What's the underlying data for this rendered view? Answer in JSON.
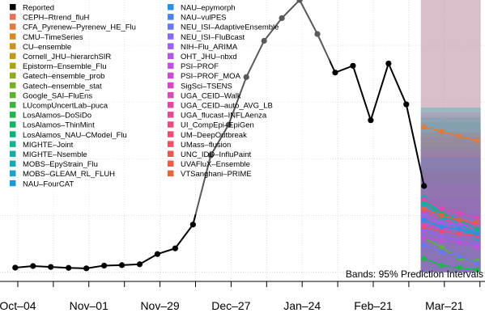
{
  "chart_data": {
    "type": "line",
    "xlabel": "",
    "ylabel": "",
    "x_ticks": [
      "Oct–04",
      "Nov–01",
      "Nov–29",
      "Dec–27",
      "Jan–24",
      "Feb–21",
      "Mar–21"
    ],
    "reported": {
      "name": "Reported",
      "x": [
        "2020-10-03",
        "2020-10-10",
        "2020-10-17",
        "2020-10-24",
        "2020-10-31",
        "2020-11-07",
        "2020-11-14",
        "2020-11-21",
        "2020-11-28",
        "2020-12-05",
        "2020-12-12",
        "2020-12-19",
        "2020-12-26",
        "2021-01-02",
        "2021-01-09",
        "2021-01-16",
        "2021-01-23",
        "2021-01-30",
        "2021-02-06",
        "2021-02-13",
        "2021-02-20",
        "2021-02-27",
        "2021-03-06",
        "2021-03-13"
      ],
      "y": [
        20,
        27,
        23,
        19,
        17,
        29,
        31,
        35,
        80,
        105,
        210,
        515,
        650,
        860,
        1020,
        1120,
        1200,
        1050,
        880,
        910,
        670,
        920,
        740,
        380
      ]
    },
    "legend": [
      {
        "label": "Reported",
        "color": "#000000"
      },
      {
        "label": "CEPH–Rtrend_fluH",
        "color": "#e8705a"
      },
      {
        "label": "CFA_Pyrenew–Pyrenew_HE_Flu",
        "color": "#e07a3c"
      },
      {
        "label": "CMU–TimeSeries",
        "color": "#d9882a"
      },
      {
        "label": "CU–ensemble",
        "color": "#cc9221"
      },
      {
        "label": "Cornell_JHU–hierarchSIR",
        "color": "#bf9a1c"
      },
      {
        "label": "Epistorm–Ensemble_Flu",
        "color": "#aaa21c"
      },
      {
        "label": "Gatech–ensemble_prob",
        "color": "#94a921"
      },
      {
        "label": "Gatech–ensemble_stat",
        "color": "#7aae2a"
      },
      {
        "label": "Google_SAI–FluEns",
        "color": "#5cb234"
      },
      {
        "label": "LUcompUncertLab–puca",
        "color": "#3cb43e"
      },
      {
        "label": "LosAlamos–DoSiDo",
        "color": "#1fb54e"
      },
      {
        "label": "LosAlamos–ThinMint",
        "color": "#12b463"
      },
      {
        "label": "LosAlamos_NAU–CModel_Flu",
        "color": "#14b27a"
      },
      {
        "label": "MIGHTE–Joint",
        "color": "#17b08f"
      },
      {
        "label": "MIGHTE–Nsemble",
        "color": "#18ada3"
      },
      {
        "label": "MOBS–EpyStrain_Flu",
        "color": "#19a9b5"
      },
      {
        "label": "MOBS–GLEAM_RL_FLUH",
        "color": "#1aa3c6"
      },
      {
        "label": "NAU–FourCAT",
        "color": "#1a9bd6"
      },
      {
        "label": "NAU–epymorph",
        "color": "#2a90e2"
      },
      {
        "label": "NAU–vulPES",
        "color": "#4a84ea"
      },
      {
        "label": "NEU_ISI–AdaptiveEnsemble",
        "color": "#6a78ee"
      },
      {
        "label": "NEU_ISI–FluBcast",
        "color": "#856cef"
      },
      {
        "label": "NIH–Flu_ARIMA",
        "color": "#9b62ec"
      },
      {
        "label": "OHT_JHU–nbxd",
        "color": "#ad59e6"
      },
      {
        "label": "PSI–PROF",
        "color": "#bd52dd"
      },
      {
        "label": "PSI–PROF_MOA",
        "color": "#ca4dd1"
      },
      {
        "label": "SigSci–TSENS",
        "color": "#d44ac3"
      },
      {
        "label": "UGA_CEID–Walk",
        "color": "#dc48b4"
      },
      {
        "label": "UGA_CEID–auto_AVG_LB",
        "color": "#e247a4"
      },
      {
        "label": "UGA_flucast–INFLAenza",
        "color": "#e64893"
      },
      {
        "label": "UI_CompEpi–EpiGen",
        "color": "#e84a82"
      },
      {
        "label": "UM–DeepOutbreak",
        "color": "#e94e72"
      },
      {
        "label": "UMass–flusion",
        "color": "#e95362"
      },
      {
        "label": "UNC_IDD–InfluPaint",
        "color": "#e85953"
      },
      {
        "label": "UVAFluX–Ensemble",
        "color": "#e65f46"
      },
      {
        "label": "VTSanghani–PRIME",
        "color": "#e4653b"
      }
    ],
    "forecast_x": [
      "2021-03-13",
      "2021-03-20",
      "2021-03-27",
      "2021-04-03"
    ],
    "forecast_series": [
      {
        "color": "#e07a3c",
        "y": [
          640,
          620,
          600,
          580
        ]
      },
      {
        "color": "#ca4dd1",
        "y": [
          210,
          190,
          200,
          170
        ]
      },
      {
        "color": "#1aa3c6",
        "y": [
          300,
          240,
          220,
          150
        ]
      },
      {
        "color": "#e247a4",
        "y": [
          270,
          230,
          230,
          210
        ]
      },
      {
        "color": "#17b08f",
        "y": [
          330,
          230,
          190,
          160
        ]
      },
      {
        "color": "#856cef",
        "y": [
          250,
          210,
          200,
          180
        ]
      },
      {
        "color": "#5cb234",
        "y": [
          150,
          110,
          60,
          50
        ]
      },
      {
        "color": "#e94e72",
        "y": [
          200,
          180,
          170,
          160
        ]
      },
      {
        "color": "#19a9b5",
        "y": [
          330,
          260,
          210,
          170
        ]
      },
      {
        "color": "#ad59e6",
        "y": [
          240,
          220,
          210,
          200
        ]
      },
      {
        "color": "#14b27a",
        "y": [
          310,
          260,
          230,
          190
        ]
      },
      {
        "color": "#9b62ec",
        "y": [
          180,
          160,
          140,
          120
        ]
      },
      {
        "color": "#1fb54e",
        "y": [
          60,
          30,
          20,
          10
        ]
      },
      {
        "color": "#e65f46",
        "y": [
          280,
          250,
          230,
          220
        ]
      },
      {
        "color": "#2a90e2",
        "y": [
          230,
          200,
          190,
          170
        ]
      },
      {
        "color": "#dc48b4",
        "y": [
          320,
          280,
          260,
          240
        ]
      },
      {
        "color": "#6a78ee",
        "y": [
          120,
          90,
          70,
          40
        ]
      },
      {
        "color": "#bd52dd",
        "y": [
          150,
          140,
          130,
          110
        ]
      }
    ],
    "band": {
      "lower": [
        0,
        0,
        0,
        0
      ],
      "upper": [
        1300,
        1300,
        1300,
        1300
      ]
    },
    "ylim": [
      -30,
      1200
    ],
    "xlim": [
      "2020-09-27",
      "2021-04-06"
    ],
    "grid": true,
    "legend_position": "top-left",
    "annotation": "Bands: 95% Prediction Intervals"
  }
}
